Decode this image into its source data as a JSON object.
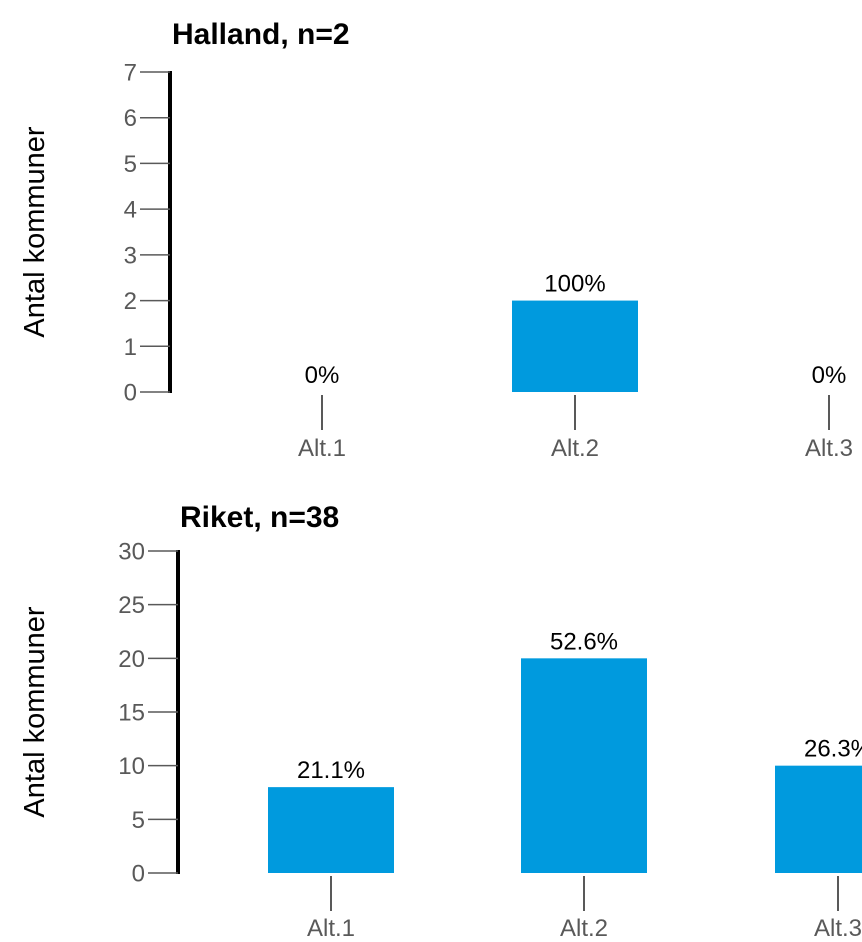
{
  "chart_data": [
    {
      "type": "bar",
      "title": "Halland, n=2",
      "ylabel": "Antal kommuner",
      "xlabel": "",
      "categories": [
        "Alt.1",
        "Alt.2",
        "Alt.3"
      ],
      "values": [
        0,
        2,
        0
      ],
      "data_labels": [
        "0%",
        "100%",
        "0%"
      ],
      "yticks": [
        "0",
        "1",
        "2",
        "3",
        "4",
        "5",
        "6",
        "7"
      ],
      "ylim": [
        0,
        7
      ],
      "grid": false,
      "bar_color": "#009ADE"
    },
    {
      "type": "bar",
      "title": "Riket, n=38",
      "ylabel": "Antal kommuner",
      "xlabel": "",
      "categories": [
        "Alt.1",
        "Alt.2",
        "Alt.3"
      ],
      "values": [
        8,
        20,
        10
      ],
      "data_labels": [
        "21.1%",
        "52.6%",
        "26.3%"
      ],
      "yticks": [
        "0",
        "5",
        "10",
        "15",
        "20",
        "25",
        "30"
      ],
      "ylim": [
        0,
        30
      ],
      "grid": false,
      "bar_color": "#009ADE"
    }
  ]
}
